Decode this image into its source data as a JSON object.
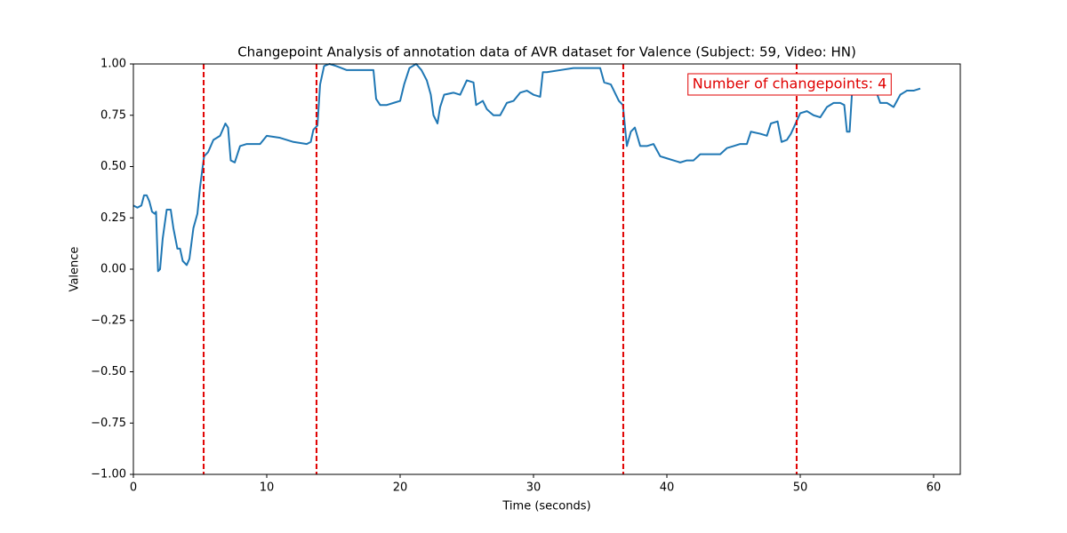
{
  "chart_data": {
    "type": "line",
    "title": "Changepoint Analysis of annotation data of AVR dataset for Valence (Subject: 59, Video: HN)",
    "xlabel": "Time (seconds)",
    "ylabel": "Valence",
    "color": "#1f77b4",
    "x": [
      0,
      0.3,
      0.6,
      0.8,
      1.0,
      1.2,
      1.4,
      1.6,
      1.7,
      1.85,
      2.0,
      2.2,
      2.5,
      2.8,
      3.0,
      3.3,
      3.5,
      3.7,
      4.0,
      4.2,
      4.5,
      4.8,
      5.0,
      5.3,
      5.6,
      6.0,
      6.5,
      6.9,
      7.1,
      7.3,
      7.6,
      8.0,
      8.5,
      9.0,
      9.5,
      10,
      11,
      12,
      13,
      13.3,
      13.5,
      13.8,
      14.0,
      14.3,
      14.7,
      15.2,
      16,
      17,
      18,
      18.2,
      18.5,
      19,
      19.5,
      20,
      20.3,
      20.7,
      21.2,
      21.6,
      22,
      22.3,
      22.5,
      22.8,
      23.0,
      23.3,
      24,
      24.5,
      25,
      25.5,
      25.7,
      26.2,
      26.5,
      27,
      27.5,
      28,
      28.5,
      29,
      29.5,
      30,
      30.5,
      30.7,
      31,
      32,
      33,
      34,
      35,
      35.3,
      35.8,
      36.4,
      36.7,
      37,
      37.3,
      37.6,
      38,
      38.5,
      39,
      39.5,
      40,
      40.5,
      41,
      41.5,
      42,
      42.5,
      43,
      43.5,
      44,
      44.5,
      45,
      45.5,
      46,
      46.3,
      47,
      47.5,
      47.8,
      48.3,
      48.6,
      49,
      49.3,
      50,
      50.5,
      51,
      51.5,
      52,
      52.5,
      53,
      53.3,
      53.5,
      53.7,
      53.9,
      54.5,
      55,
      55.5,
      56,
      56.5,
      57,
      57.5,
      58,
      58.5,
      59
    ],
    "values": [
      0.31,
      0.3,
      0.31,
      0.36,
      0.36,
      0.33,
      0.28,
      0.27,
      0.28,
      -0.01,
      0.0,
      0.15,
      0.29,
      0.29,
      0.2,
      0.1,
      0.1,
      0.04,
      0.02,
      0.05,
      0.2,
      0.27,
      0.4,
      0.55,
      0.57,
      0.63,
      0.65,
      0.71,
      0.69,
      0.53,
      0.52,
      0.6,
      0.61,
      0.61,
      0.61,
      0.65,
      0.64,
      0.62,
      0.61,
      0.62,
      0.68,
      0.7,
      0.9,
      0.99,
      1.0,
      0.99,
      0.97,
      0.97,
      0.97,
      0.83,
      0.8,
      0.8,
      0.81,
      0.82,
      0.9,
      0.98,
      1.0,
      0.97,
      0.92,
      0.85,
      0.75,
      0.71,
      0.79,
      0.85,
      0.86,
      0.85,
      0.92,
      0.91,
      0.8,
      0.82,
      0.78,
      0.75,
      0.75,
      0.81,
      0.82,
      0.86,
      0.87,
      0.85,
      0.84,
      0.96,
      0.96,
      0.97,
      0.98,
      0.98,
      0.98,
      0.91,
      0.9,
      0.82,
      0.8,
      0.6,
      0.67,
      0.69,
      0.6,
      0.6,
      0.61,
      0.55,
      0.54,
      0.53,
      0.52,
      0.53,
      0.53,
      0.56,
      0.56,
      0.56,
      0.56,
      0.59,
      0.6,
      0.61,
      0.61,
      0.67,
      0.66,
      0.65,
      0.71,
      0.72,
      0.62,
      0.63,
      0.66,
      0.76,
      0.77,
      0.75,
      0.74,
      0.79,
      0.81,
      0.81,
      0.8,
      0.67,
      0.67,
      0.88,
      0.89,
      0.87,
      0.9,
      0.81,
      0.81,
      0.79,
      0.85,
      0.87,
      0.87,
      0.88
    ],
    "changepoints": [
      5.27,
      13.73,
      36.73,
      49.73
    ],
    "changepoint_color": "#e00000",
    "annotation": "Number of changepoints: 4",
    "xlim": [
      0,
      62
    ],
    "ylim": [
      -1,
      1
    ],
    "xticks": [
      0,
      10,
      20,
      30,
      40,
      50,
      60
    ],
    "yticks": [
      {
        "value": 1,
        "label": "1.00"
      },
      {
        "value": 0.75,
        "label": "0.75"
      },
      {
        "value": 0.5,
        "label": "0.50"
      },
      {
        "value": 0.25,
        "label": "0.25"
      },
      {
        "value": 0,
        "label": "0.00"
      },
      {
        "value": -0.25,
        "label": "−0.25"
      },
      {
        "value": -0.5,
        "label": "−0.50"
      },
      {
        "value": -0.75,
        "label": "−0.75"
      },
      {
        "value": -1,
        "label": "−1.00"
      }
    ],
    "grid": false
  }
}
